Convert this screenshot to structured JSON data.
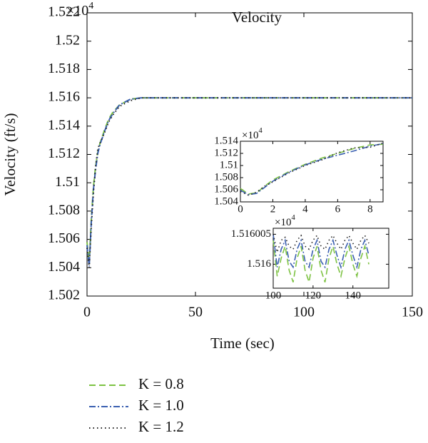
{
  "chart_data": [
    {
      "type": "line",
      "title": "Velocity",
      "xlabel": "Time (sec)",
      "ylabel": "Velocity (ft/s)",
      "y_scale": {
        "base": "×10",
        "exponent": "4"
      },
      "xlim": [
        0,
        150
      ],
      "xticks": [
        0,
        50,
        100,
        150
      ],
      "ylim": [
        1.502,
        1.522
      ],
      "yticks": [
        1.502,
        1.504,
        1.506,
        1.508,
        1.51,
        1.512,
        1.514,
        1.516,
        1.518,
        1.52,
        1.522
      ],
      "x": [
        0,
        1,
        2,
        3,
        4,
        5,
        6,
        8,
        10,
        12,
        15,
        20,
        25,
        30,
        50,
        75,
        100,
        125,
        150
      ],
      "series": [
        {
          "name": "K = 0.8",
          "color": "#7dc242",
          "dash": "dashed",
          "values": [
            1.5058,
            1.5043,
            1.5075,
            1.5098,
            1.5112,
            1.5122,
            1.5128,
            1.5137,
            1.5145,
            1.515,
            1.5155,
            1.5159,
            1.516,
            1.516,
            1.516,
            1.516,
            1.516,
            1.516,
            1.516
          ]
        },
        {
          "name": "K = 1.0",
          "color": "#3a5fb0",
          "dash": "dashdot",
          "values": [
            1.5056,
            1.5041,
            1.5073,
            1.5096,
            1.511,
            1.5121,
            1.5127,
            1.5136,
            1.5144,
            1.5149,
            1.5155,
            1.5159,
            1.516,
            1.516,
            1.516,
            1.516,
            1.516,
            1.516,
            1.516
          ]
        },
        {
          "name": "K = 1.2",
          "color": "#222222",
          "dash": "dotted",
          "values": [
            1.5054,
            1.504,
            1.507,
            1.5094,
            1.5112,
            1.5124,
            1.5128,
            1.5135,
            1.5143,
            1.5148,
            1.5154,
            1.5158,
            1.516,
            1.516,
            1.516,
            1.516,
            1.516,
            1.516,
            1.516
          ]
        }
      ]
    },
    {
      "type": "line",
      "y_scale": {
        "base": "×10",
        "exponent": "4"
      },
      "xlim": [
        0,
        8.8
      ],
      "xticks": [
        0,
        2,
        4,
        6,
        8
      ],
      "ylim": [
        1.504,
        1.514
      ],
      "yticks": [
        1.504,
        1.506,
        1.508,
        1.51,
        1.512,
        1.514
      ],
      "x": [
        0,
        0.5,
        1,
        1.5,
        2,
        3,
        4,
        5,
        6,
        7,
        8,
        8.8
      ],
      "series": [
        {
          "color": "#7dc242",
          "dash": "dashed",
          "values": [
            1.5062,
            1.5053,
            1.5055,
            1.5066,
            1.5076,
            1.509,
            1.5102,
            1.5112,
            1.512,
            1.5128,
            1.5134,
            1.5135
          ]
        },
        {
          "color": "#3a5fb0",
          "dash": "dashdot",
          "values": [
            1.5059,
            1.5052,
            1.5054,
            1.5064,
            1.5074,
            1.5089,
            1.5101,
            1.511,
            1.5117,
            1.5124,
            1.5132,
            1.5136
          ]
        },
        {
          "color": "#222222",
          "dash": "dotted",
          "values": [
            1.5057,
            1.5051,
            1.5056,
            1.5066,
            1.5073,
            1.5088,
            1.51,
            1.5109,
            1.5121,
            1.5129,
            1.513,
            1.5137
          ]
        }
      ]
    },
    {
      "type": "line",
      "y_scale": {
        "base": "×10",
        "exponent": "4"
      },
      "xlim": [
        100,
        158
      ],
      "xticks": [
        100,
        120,
        140
      ],
      "ylim": [
        1.515996,
        1.516006
      ],
      "yticks": [
        1.516,
        1.516005
      ],
      "x": [
        100,
        102,
        104,
        106,
        108,
        110,
        112,
        114,
        116,
        118,
        120,
        122,
        124,
        126,
        128,
        130,
        132,
        134,
        136,
        138,
        140,
        142,
        144,
        146,
        148
      ],
      "series": [
        {
          "color": "#7dc242",
          "dash": "dashed",
          "values": [
            1.516004,
            1.515998,
            1.516001,
            1.516003,
            1.515999,
            1.515997,
            1.516001,
            1.516003,
            1.515999,
            1.515997,
            1.516001,
            1.516003,
            1.515999,
            1.515997,
            1.516001,
            1.516003,
            1.516,
            1.515998,
            1.516001,
            1.516003,
            1.516,
            1.515998,
            1.516001,
            1.516003,
            1.516
          ]
        },
        {
          "color": "#3a5fb0",
          "dash": "dashdot",
          "values": [
            1.516005,
            1.5159995,
            1.5160025,
            1.516004,
            1.5160005,
            1.5159995,
            1.5160025,
            1.516004,
            1.5160005,
            1.5159995,
            1.5160025,
            1.516004,
            1.5160005,
            1.5159995,
            1.5160025,
            1.516004,
            1.5160015,
            1.5159995,
            1.5160025,
            1.516004,
            1.5160015,
            1.5159995,
            1.5160025,
            1.516004,
            1.5160015
          ]
        },
        {
          "color": "#222222",
          "dash": "dotted",
          "values": [
            1.516005,
            1.516002,
            1.516004,
            1.5160045,
            1.516003,
            1.5160025,
            1.516004,
            1.5160048,
            1.516003,
            1.5160025,
            1.516004,
            1.5160048,
            1.516003,
            1.5160025,
            1.516004,
            1.5160048,
            1.5160035,
            1.5160025,
            1.516004,
            1.5160048,
            1.5160035,
            1.5160025,
            1.516004,
            1.5160048,
            1.5160035
          ]
        }
      ]
    }
  ]
}
